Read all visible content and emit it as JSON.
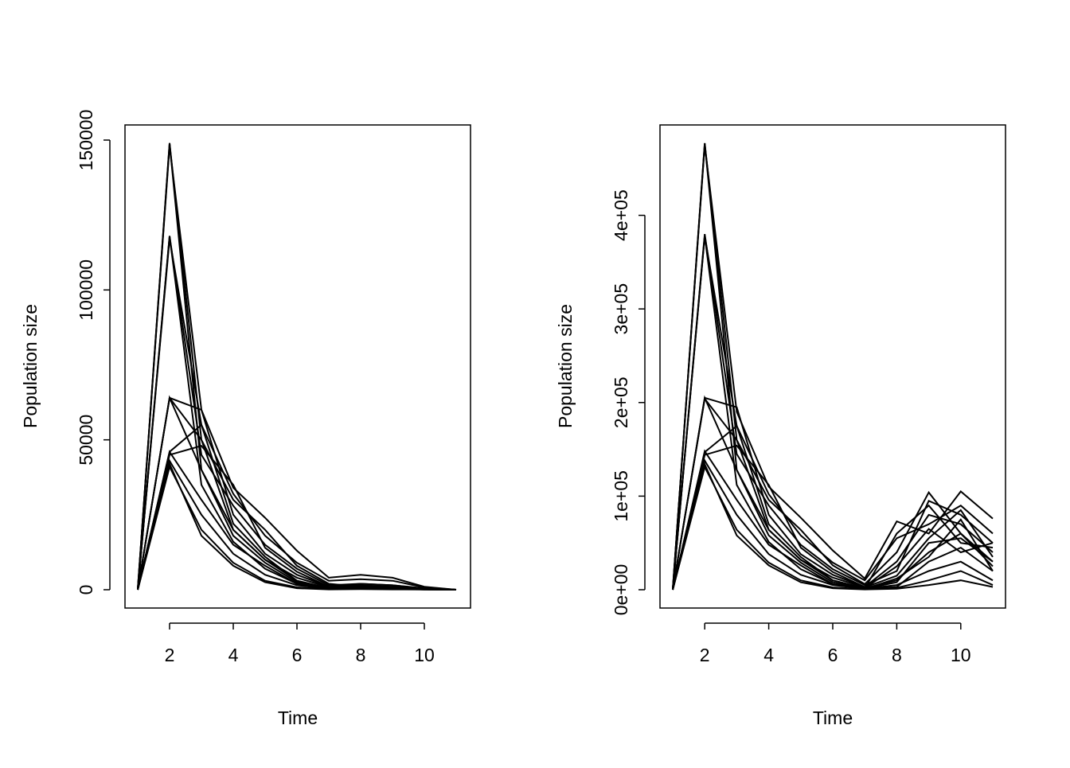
{
  "chart_data": [
    {
      "type": "line",
      "xlabel": "Time",
      "ylabel": "Population size",
      "xlim": [
        1,
        11
      ],
      "ylim": [
        0,
        150000
      ],
      "xticks": [
        2,
        4,
        6,
        8,
        10
      ],
      "xtick_labels": [
        "2",
        "4",
        "6",
        "8",
        "10"
      ],
      "yticks": [
        0,
        50000,
        100000,
        150000
      ],
      "ytick_labels": [
        "0",
        "50000",
        "100000",
        "150000"
      ],
      "x": [
        1,
        2,
        3,
        4,
        5,
        6,
        7,
        8,
        9,
        10,
        11
      ],
      "line_color": "#000000",
      "series": [
        {
          "values": [
            0,
            149000,
            50000,
            30000,
            20000,
            8000,
            2000,
            1000,
            500,
            300,
            0
          ]
        },
        {
          "values": [
            0,
            148000,
            60000,
            34000,
            24000,
            13000,
            4000,
            5000,
            4000,
            1000,
            0
          ]
        },
        {
          "values": [
            0,
            118000,
            45000,
            28000,
            15000,
            7000,
            1500,
            2000,
            1500,
            500,
            0
          ]
        },
        {
          "values": [
            0,
            117000,
            55000,
            32000,
            18000,
            9000,
            3000,
            3500,
            3000,
            800,
            0
          ]
        },
        {
          "values": [
            0,
            64000,
            60000,
            25000,
            12000,
            5000,
            1000,
            1500,
            1000,
            400,
            0
          ]
        },
        {
          "values": [
            0,
            64000,
            50000,
            20000,
            10000,
            4000,
            800,
            1000,
            700,
            300,
            0
          ]
        },
        {
          "values": [
            0,
            46000,
            55000,
            22000,
            11000,
            3000,
            500,
            1000,
            500,
            200,
            0
          ]
        },
        {
          "values": [
            0,
            46000,
            30000,
            15000,
            8000,
            2000,
            300,
            500,
            300,
            100,
            0
          ]
        },
        {
          "values": [
            0,
            42000,
            18000,
            8000,
            2500,
            500,
            100,
            200,
            100,
            50,
            0
          ]
        },
        {
          "values": [
            0,
            41000,
            20000,
            9000,
            3000,
            800,
            200,
            300,
            200,
            100,
            0
          ]
        },
        {
          "values": [
            0,
            43000,
            25000,
            12000,
            5000,
            1500,
            300,
            600,
            400,
            100,
            0
          ]
        },
        {
          "values": [
            0,
            149000,
            40000,
            20000,
            10000,
            3000,
            500,
            800,
            500,
            200,
            0
          ]
        },
        {
          "values": [
            0,
            118000,
            35000,
            16000,
            7000,
            2000,
            300,
            500,
            300,
            100,
            0
          ]
        },
        {
          "values": [
            0,
            64000,
            40000,
            18000,
            9000,
            2500,
            400,
            700,
            500,
            200,
            0
          ]
        },
        {
          "values": [
            0,
            45000,
            48000,
            35000,
            14000,
            6000,
            1000,
            2000,
            1500,
            400,
            0
          ]
        }
      ]
    },
    {
      "type": "line",
      "xlabel": "Time",
      "ylabel": "Population size",
      "xlim": [
        1,
        11
      ],
      "ylim": [
        0,
        477000
      ],
      "xticks": [
        2,
        4,
        6,
        8,
        10
      ],
      "xtick_labels": [
        "2",
        "4",
        "6",
        "8",
        "10"
      ],
      "yticks": [
        0,
        100000,
        200000,
        300000,
        400000
      ],
      "ytick_labels": [
        "0e+00",
        "1e+05",
        "2e+05",
        "3e+05",
        "4e+05"
      ],
      "x": [
        1,
        2,
        3,
        4,
        5,
        6,
        7,
        8,
        9,
        10,
        11
      ],
      "line_color": "#000000",
      "series": [
        {
          "values": [
            0,
            477000,
            160000,
            96000,
            64000,
            26000,
            6000,
            40000,
            104000,
            60000,
            30000
          ]
        },
        {
          "values": [
            0,
            475000,
            190000,
            110000,
            77000,
            42000,
            12000,
            73000,
            60000,
            105000,
            76000
          ]
        },
        {
          "values": [
            0,
            380000,
            145000,
            90000,
            48000,
            22000,
            5000,
            20000,
            95000,
            80000,
            50000
          ]
        },
        {
          "values": [
            0,
            378000,
            175000,
            102000,
            58000,
            29000,
            10000,
            55000,
            70000,
            90000,
            60000
          ]
        },
        {
          "values": [
            0,
            205000,
            195000,
            80000,
            38000,
            16000,
            3000,
            30000,
            80000,
            70000,
            40000
          ]
        },
        {
          "values": [
            0,
            204000,
            160000,
            64000,
            32000,
            13000,
            2500,
            15000,
            55000,
            85000,
            35000
          ]
        },
        {
          "values": [
            0,
            147000,
            175000,
            70000,
            35000,
            10000,
            1500,
            10000,
            40000,
            60000,
            25000
          ]
        },
        {
          "values": [
            0,
            148000,
            96000,
            48000,
            26000,
            6000,
            1000,
            5000,
            20000,
            30000,
            10000
          ]
        },
        {
          "values": [
            0,
            134000,
            58000,
            26000,
            8000,
            1600,
            300,
            1000,
            5000,
            10000,
            3000
          ]
        },
        {
          "values": [
            0,
            131000,
            64000,
            29000,
            10000,
            2500,
            600,
            3000,
            30000,
            45000,
            20000
          ]
        },
        {
          "values": [
            0,
            138000,
            80000,
            38000,
            16000,
            5000,
            1000,
            8000,
            50000,
            55000,
            30000
          ]
        },
        {
          "values": [
            0,
            477000,
            128000,
            64000,
            32000,
            10000,
            1600,
            25000,
            65000,
            40000,
            50000
          ]
        },
        {
          "values": [
            0,
            378000,
            112000,
            51000,
            22000,
            6000,
            1000,
            12000,
            35000,
            75000,
            20000
          ]
        },
        {
          "values": [
            0,
            205000,
            128000,
            58000,
            29000,
            8000,
            1300,
            60000,
            90000,
            50000,
            45000
          ]
        },
        {
          "values": [
            0,
            144000,
            154000,
            112000,
            45000,
            19000,
            3000,
            2000,
            10000,
            20000,
            5000
          ]
        }
      ]
    }
  ]
}
